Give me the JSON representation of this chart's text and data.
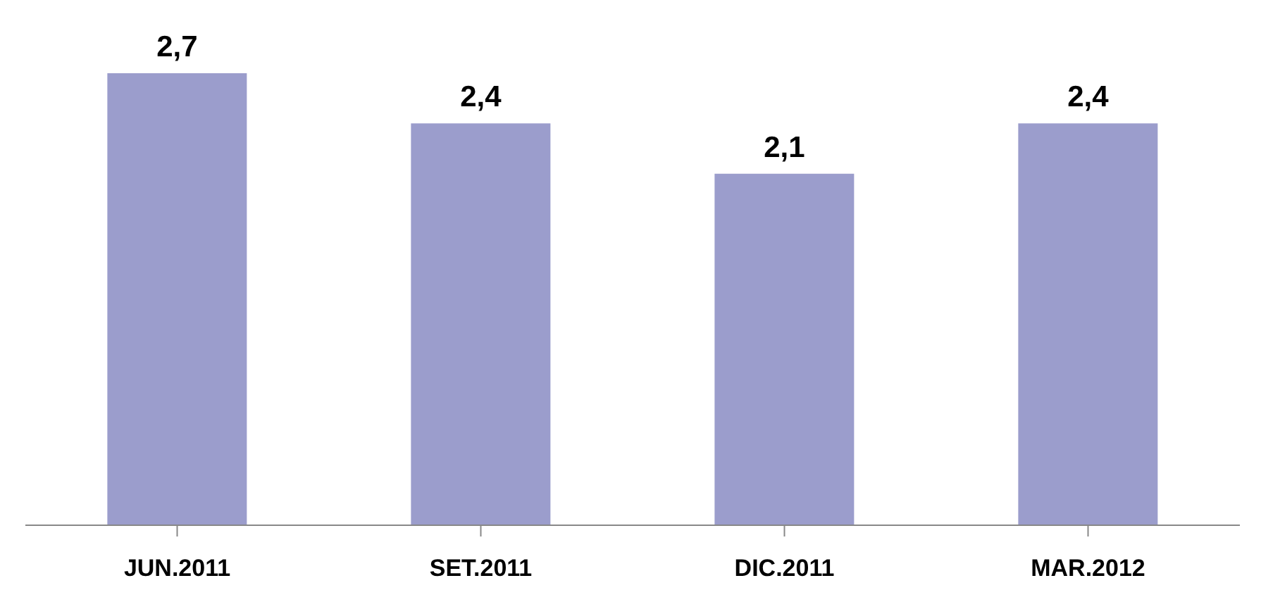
{
  "chart_data": {
    "type": "bar",
    "categories": [
      "JUN.2011",
      "SET.2011",
      "DIC.2011",
      "MAR.2012"
    ],
    "values": [
      2.7,
      2.4,
      2.1,
      2.4
    ],
    "value_labels": [
      "2,7",
      "2,4",
      "2,1",
      "2,4"
    ],
    "color": "#9b9dcc"
  }
}
